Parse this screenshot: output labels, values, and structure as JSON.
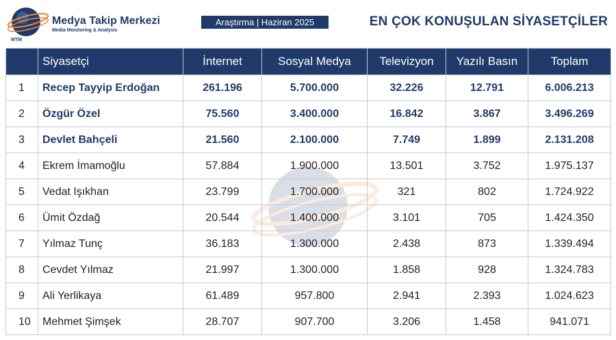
{
  "brand": {
    "name": "Medya Takip Merkezi",
    "subtitle": "Media Monitoring & Analysis",
    "logo_text": "MTM"
  },
  "period_label": "Araştırma | Haziran 2025",
  "title": "EN ÇOK KONUŞULAN SİYASETÇİLER",
  "colors": {
    "brand_navy": "#1f3a6b",
    "accent_orange": "#e8873a",
    "grid": "#c5cad3"
  },
  "table": {
    "headers": [
      "",
      "Siyasetçi",
      "İnternet",
      "Sosyal Medya",
      "Televizyon",
      "Yazılı Basın",
      "Toplam"
    ],
    "rows": [
      [
        "1",
        "Recep Tayyip Erdoğan",
        "261.196",
        "5.700.000",
        "32.226",
        "12.791",
        "6.006.213"
      ],
      [
        "2",
        "Özgür Özel",
        "75.560",
        "3.400.000",
        "16.842",
        "3.867",
        "3.496.269"
      ],
      [
        "3",
        "Devlet Bahçeli",
        "21.560",
        "2.100.000",
        "7.749",
        "1.899",
        "2.131.208"
      ],
      [
        "4",
        "Ekrem İmamoğlu",
        "57.884",
        "1.900.000",
        "13.501",
        "3.752",
        "1.975.137"
      ],
      [
        "5",
        "Vedat Işıkhan",
        "23.799",
        "1.700.000",
        "321",
        "802",
        "1.724.922"
      ],
      [
        "6",
        "Ümit Özdağ",
        "20.544",
        "1.400.000",
        "3.101",
        "705",
        "1.424.350"
      ],
      [
        "7",
        "Yılmaz Tunç",
        "36.183",
        "1.300.000",
        "2.438",
        "873",
        "1.339.494"
      ],
      [
        "8",
        "Cevdet Yılmaz",
        "21.997",
        "1.300.000",
        "1.858",
        "928",
        "1.324.783"
      ],
      [
        "9",
        "Ali Yerlikaya",
        "61.489",
        "957.800",
        "2.941",
        "2.393",
        "1.024.623"
      ],
      [
        "10",
        "Mehmet Şimşek",
        "28.707",
        "907.700",
        "3.206",
        "1.458",
        "941.071"
      ]
    ]
  }
}
